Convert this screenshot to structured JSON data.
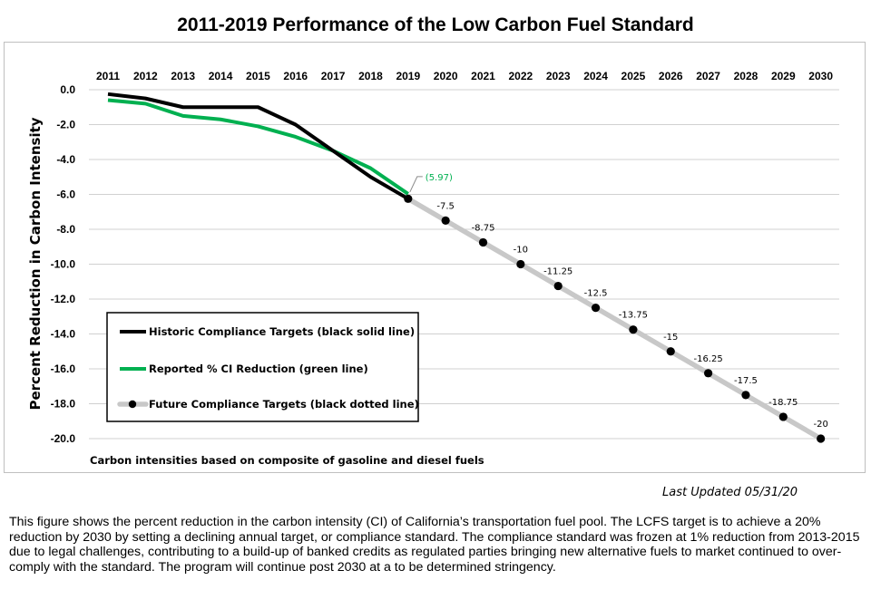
{
  "page": {
    "title": "2011-2019 Performance of the Low Carbon Fuel Standard",
    "last_updated": "Last Updated 05/31/20",
    "description": "This figure shows the percent reduction in the carbon intensity (CI) of California’s transportation fuel pool. The LCFS target is to achieve a 20% reduction by 2030 by setting a declining annual target, or compliance standard. The compliance standard was frozen at 1% reduction from 2013-2015 due to legal challenges, contributing to a build-up of banked credits as regulated parties bringing new alternative fuels to market continued to over-comply with the standard. The program will continue post 2030 at a to be determined stringency."
  },
  "chart_data": {
    "type": "line",
    "title": "2011-2019 Performance of the Low Carbon Fuel Standard",
    "xlabel": "",
    "ylabel": "Percent Reduction in Carbon Intensity",
    "x_ticks": [
      "2011",
      "2012",
      "2013",
      "2014",
      "2015",
      "2016",
      "2017",
      "2018",
      "2019",
      "2020",
      "2021",
      "2022",
      "2023",
      "2024",
      "2025",
      "2026",
      "2027",
      "2028",
      "2029",
      "2030"
    ],
    "x_axis_position": "top",
    "ylim": [
      -20,
      0
    ],
    "y_ticks": [
      "0.0",
      "-2.0",
      "-4.0",
      "-6.0",
      "-8.0",
      "-10.0",
      "-12.0",
      "-14.0",
      "-16.0",
      "-18.0",
      "-20.0"
    ],
    "grid": true,
    "legend_position": "lower-left",
    "series": [
      {
        "name": "Historic Compliance Targets (black solid line)",
        "color": "#000000",
        "style": "solid",
        "x": [
          2011,
          2012,
          2013,
          2014,
          2015,
          2016,
          2017,
          2018,
          2019
        ],
        "values": [
          -0.25,
          -0.5,
          -1.0,
          -1.0,
          -1.0,
          -2.0,
          -3.5,
          -5.0,
          -6.25
        ]
      },
      {
        "name": "Reported % CI Reduction (green line)",
        "color": "#00b050",
        "style": "solid",
        "x": [
          2011,
          2012,
          2013,
          2014,
          2015,
          2016,
          2017,
          2018,
          2019
        ],
        "values": [
          -0.6,
          -0.8,
          -1.5,
          -1.7,
          -2.1,
          -2.7,
          -3.5,
          -4.5,
          -5.97
        ]
      },
      {
        "name": "Future Compliance Targets (black dotted line)",
        "color": "#000000",
        "line_color": "#c8c8c8",
        "style": "dotted",
        "x": [
          2019,
          2020,
          2021,
          2022,
          2023,
          2024,
          2025,
          2026,
          2027,
          2028,
          2029,
          2030
        ],
        "values": [
          -6.25,
          -7.5,
          -8.75,
          -10,
          -11.25,
          -12.5,
          -13.75,
          -15,
          -16.25,
          -17.5,
          -18.75,
          -20
        ]
      }
    ],
    "data_labels": [
      {
        "x": 2019,
        "value": -5.97,
        "text": "(5.97)",
        "color": "#00b050"
      },
      {
        "x": 2020,
        "value": -7.5,
        "text": "-7.5"
      },
      {
        "x": 2021,
        "value": -8.75,
        "text": "-8.75"
      },
      {
        "x": 2022,
        "value": -10,
        "text": "-10"
      },
      {
        "x": 2023,
        "value": -11.25,
        "text": "-11.25"
      },
      {
        "x": 2024,
        "value": -12.5,
        "text": "-12.5"
      },
      {
        "x": 2025,
        "value": -13.75,
        "text": "-13.75"
      },
      {
        "x": 2026,
        "value": -15,
        "text": "-15"
      },
      {
        "x": 2027,
        "value": -16.25,
        "text": "-16.25"
      },
      {
        "x": 2028,
        "value": -17.5,
        "text": "-17.5"
      },
      {
        "x": 2029,
        "value": -18.75,
        "text": "-18.75"
      },
      {
        "x": 2030,
        "value": -20,
        "text": "-20"
      }
    ],
    "annotation": "Carbon intensities based on composite of gasoline and diesel fuels"
  }
}
